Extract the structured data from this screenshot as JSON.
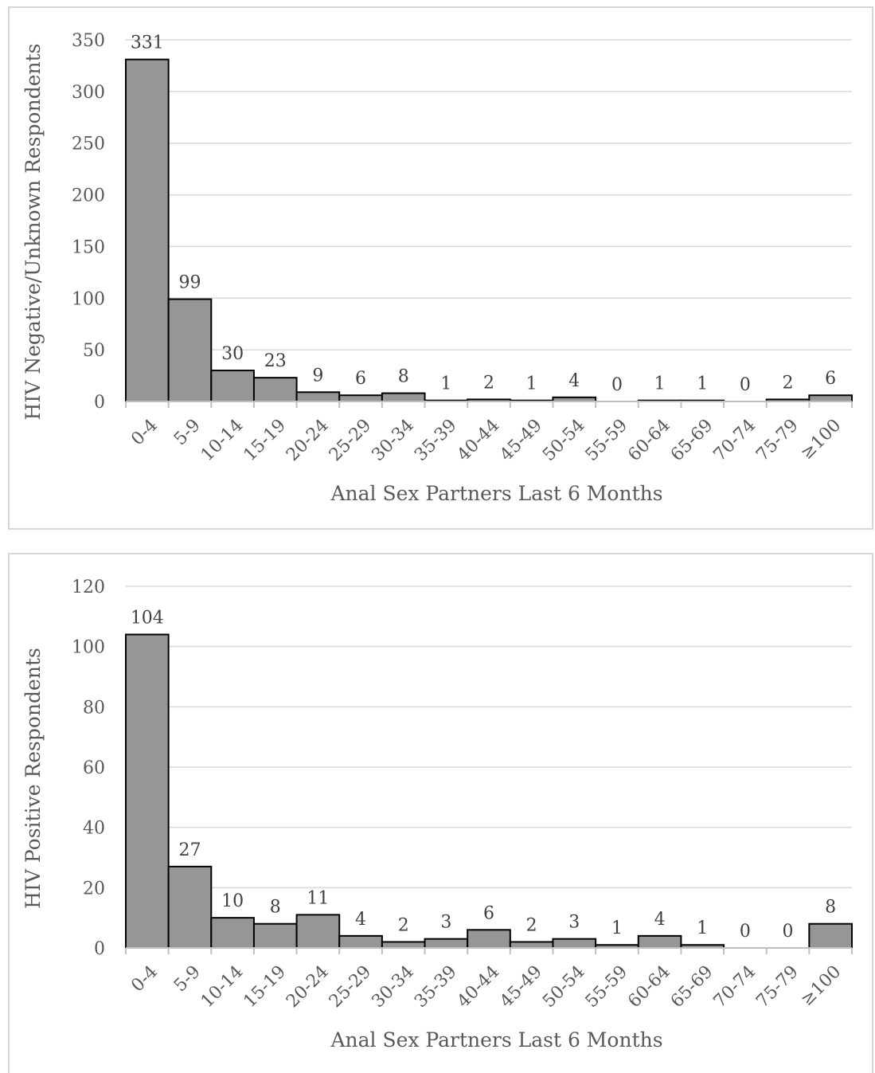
{
  "chart_data": [
    {
      "type": "bar",
      "title": "",
      "xlabel": "Anal Sex Partners Last 6 Months",
      "ylabel": "HIV Negative/Unknown Respondents",
      "categories": [
        "0-4",
        "5-9",
        "10-14",
        "15-19",
        "20-24",
        "25-29",
        "30-34",
        "35-39",
        "40-44",
        "45-49",
        "50-54",
        "55-59",
        "60-64",
        "65-69",
        "70-74",
        "75-79",
        "≥100"
      ],
      "values": [
        331,
        99,
        30,
        23,
        9,
        6,
        8,
        1,
        2,
        1,
        4,
        0,
        1,
        1,
        0,
        2,
        6
      ],
      "ylim": [
        0,
        350
      ],
      "yticks": [
        0,
        50,
        100,
        150,
        200,
        250,
        300,
        350
      ],
      "grid": true,
      "data_labels": true,
      "bar_color": "#969696",
      "bar_stroke": "#000000"
    },
    {
      "type": "bar",
      "title": "",
      "xlabel": "Anal Sex Partners Last 6 Months",
      "ylabel": "HIV Positive Respondents",
      "categories": [
        "0-4",
        "5-9",
        "10-14",
        "15-19",
        "20-24",
        "25-29",
        "30-34",
        "35-39",
        "40-44",
        "45-49",
        "50-54",
        "55-59",
        "60-64",
        "65-69",
        "70-74",
        "75-79",
        "≥100"
      ],
      "values": [
        104,
        27,
        10,
        8,
        11,
        4,
        2,
        3,
        6,
        2,
        3,
        1,
        4,
        1,
        0,
        0,
        8
      ],
      "ylim": [
        0,
        120
      ],
      "yticks": [
        0,
        20,
        40,
        60,
        80,
        100,
        120
      ],
      "grid": true,
      "data_labels": true,
      "bar_color": "#969696",
      "bar_stroke": "#000000"
    }
  ]
}
